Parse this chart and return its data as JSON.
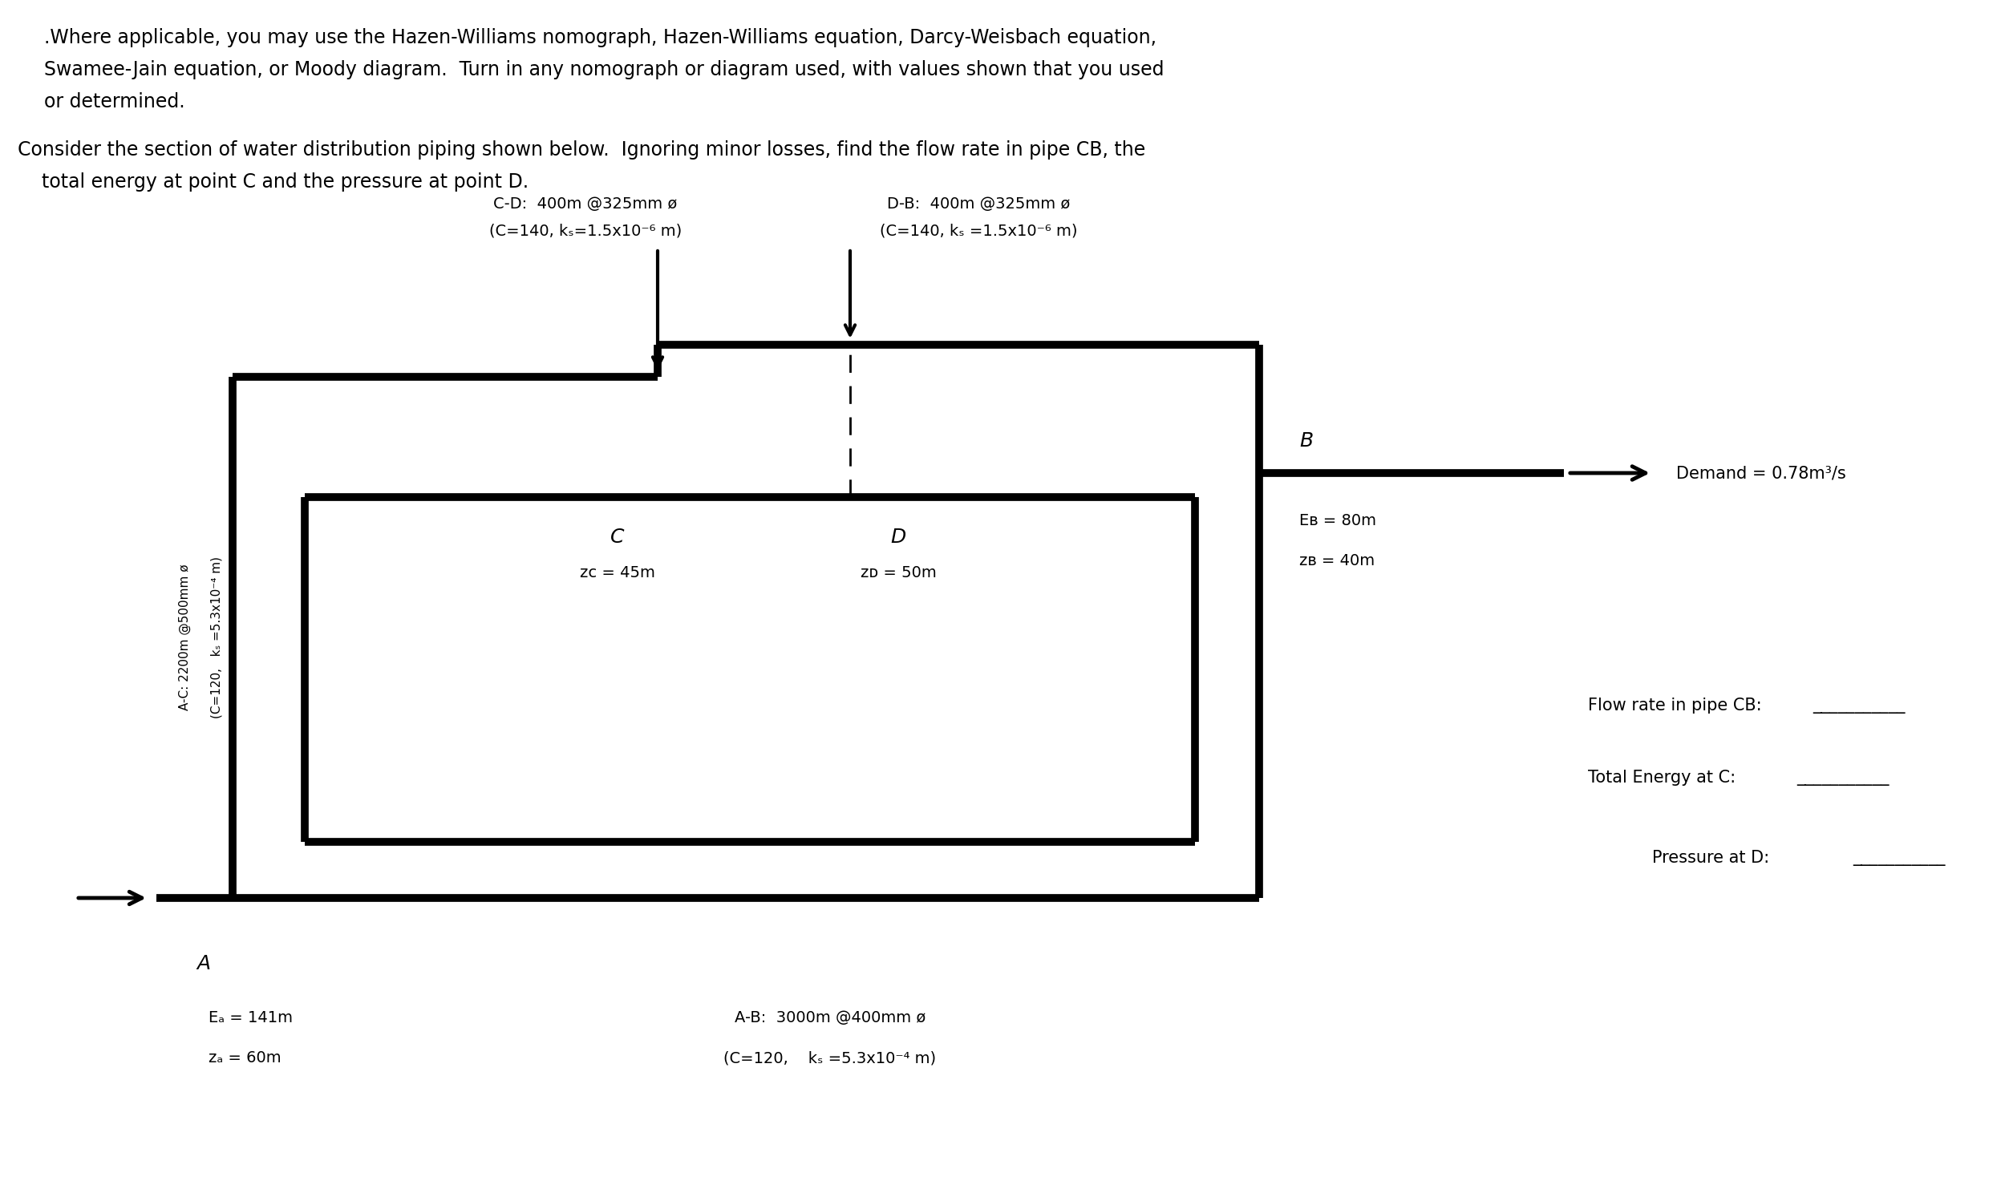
{
  "bg_color": "#ffffff",
  "text_color": "#000000",
  "para1_line1": ".Where applicable, you may use the Hazen-Williams nomograph, Hazen-Williams equation, Darcy-Weisbach equation,",
  "para1_line2": "Swamee-Jain equation, or Moody diagram.  Turn in any nomograph or diagram used, with values shown that you used",
  "para1_line3": "or determined.",
  "para2_line1": "Consider the section of water distribution piping shown below.  Ignoring minor losses, find the flow rate in pipe CB, the",
  "para2_line2": "    total energy at point C and the pressure at point D.",
  "label_CD_line1": "C-D:  400m @325mm ø",
  "label_CD_line2": "(C=140, kₛ=1.5x10⁻⁶ m)",
  "label_DB_line1": "D-B:  400m @325mm ø",
  "label_DB_line2": "(C=140, kₛ =1.5x10⁻⁶ m)",
  "label_AC_line1": "A-C: 2200m @500mm ø",
  "label_AC_line2": "(C=120,   kₛ =5.3x10⁻⁴ m)",
  "label_AB_line1": "A-B:  3000m @400mm ø",
  "label_AB_line2": "(C=120,    kₛ =5.3x10⁻⁴ m)",
  "demand_text": "Demand = 0.78m³/s",
  "answer1_label": "Flow rate in pipe CB:",
  "answer2_label": "Total Energy at C:",
  "answer3_label": "Pressure at D:",
  "answer_line": "___________"
}
